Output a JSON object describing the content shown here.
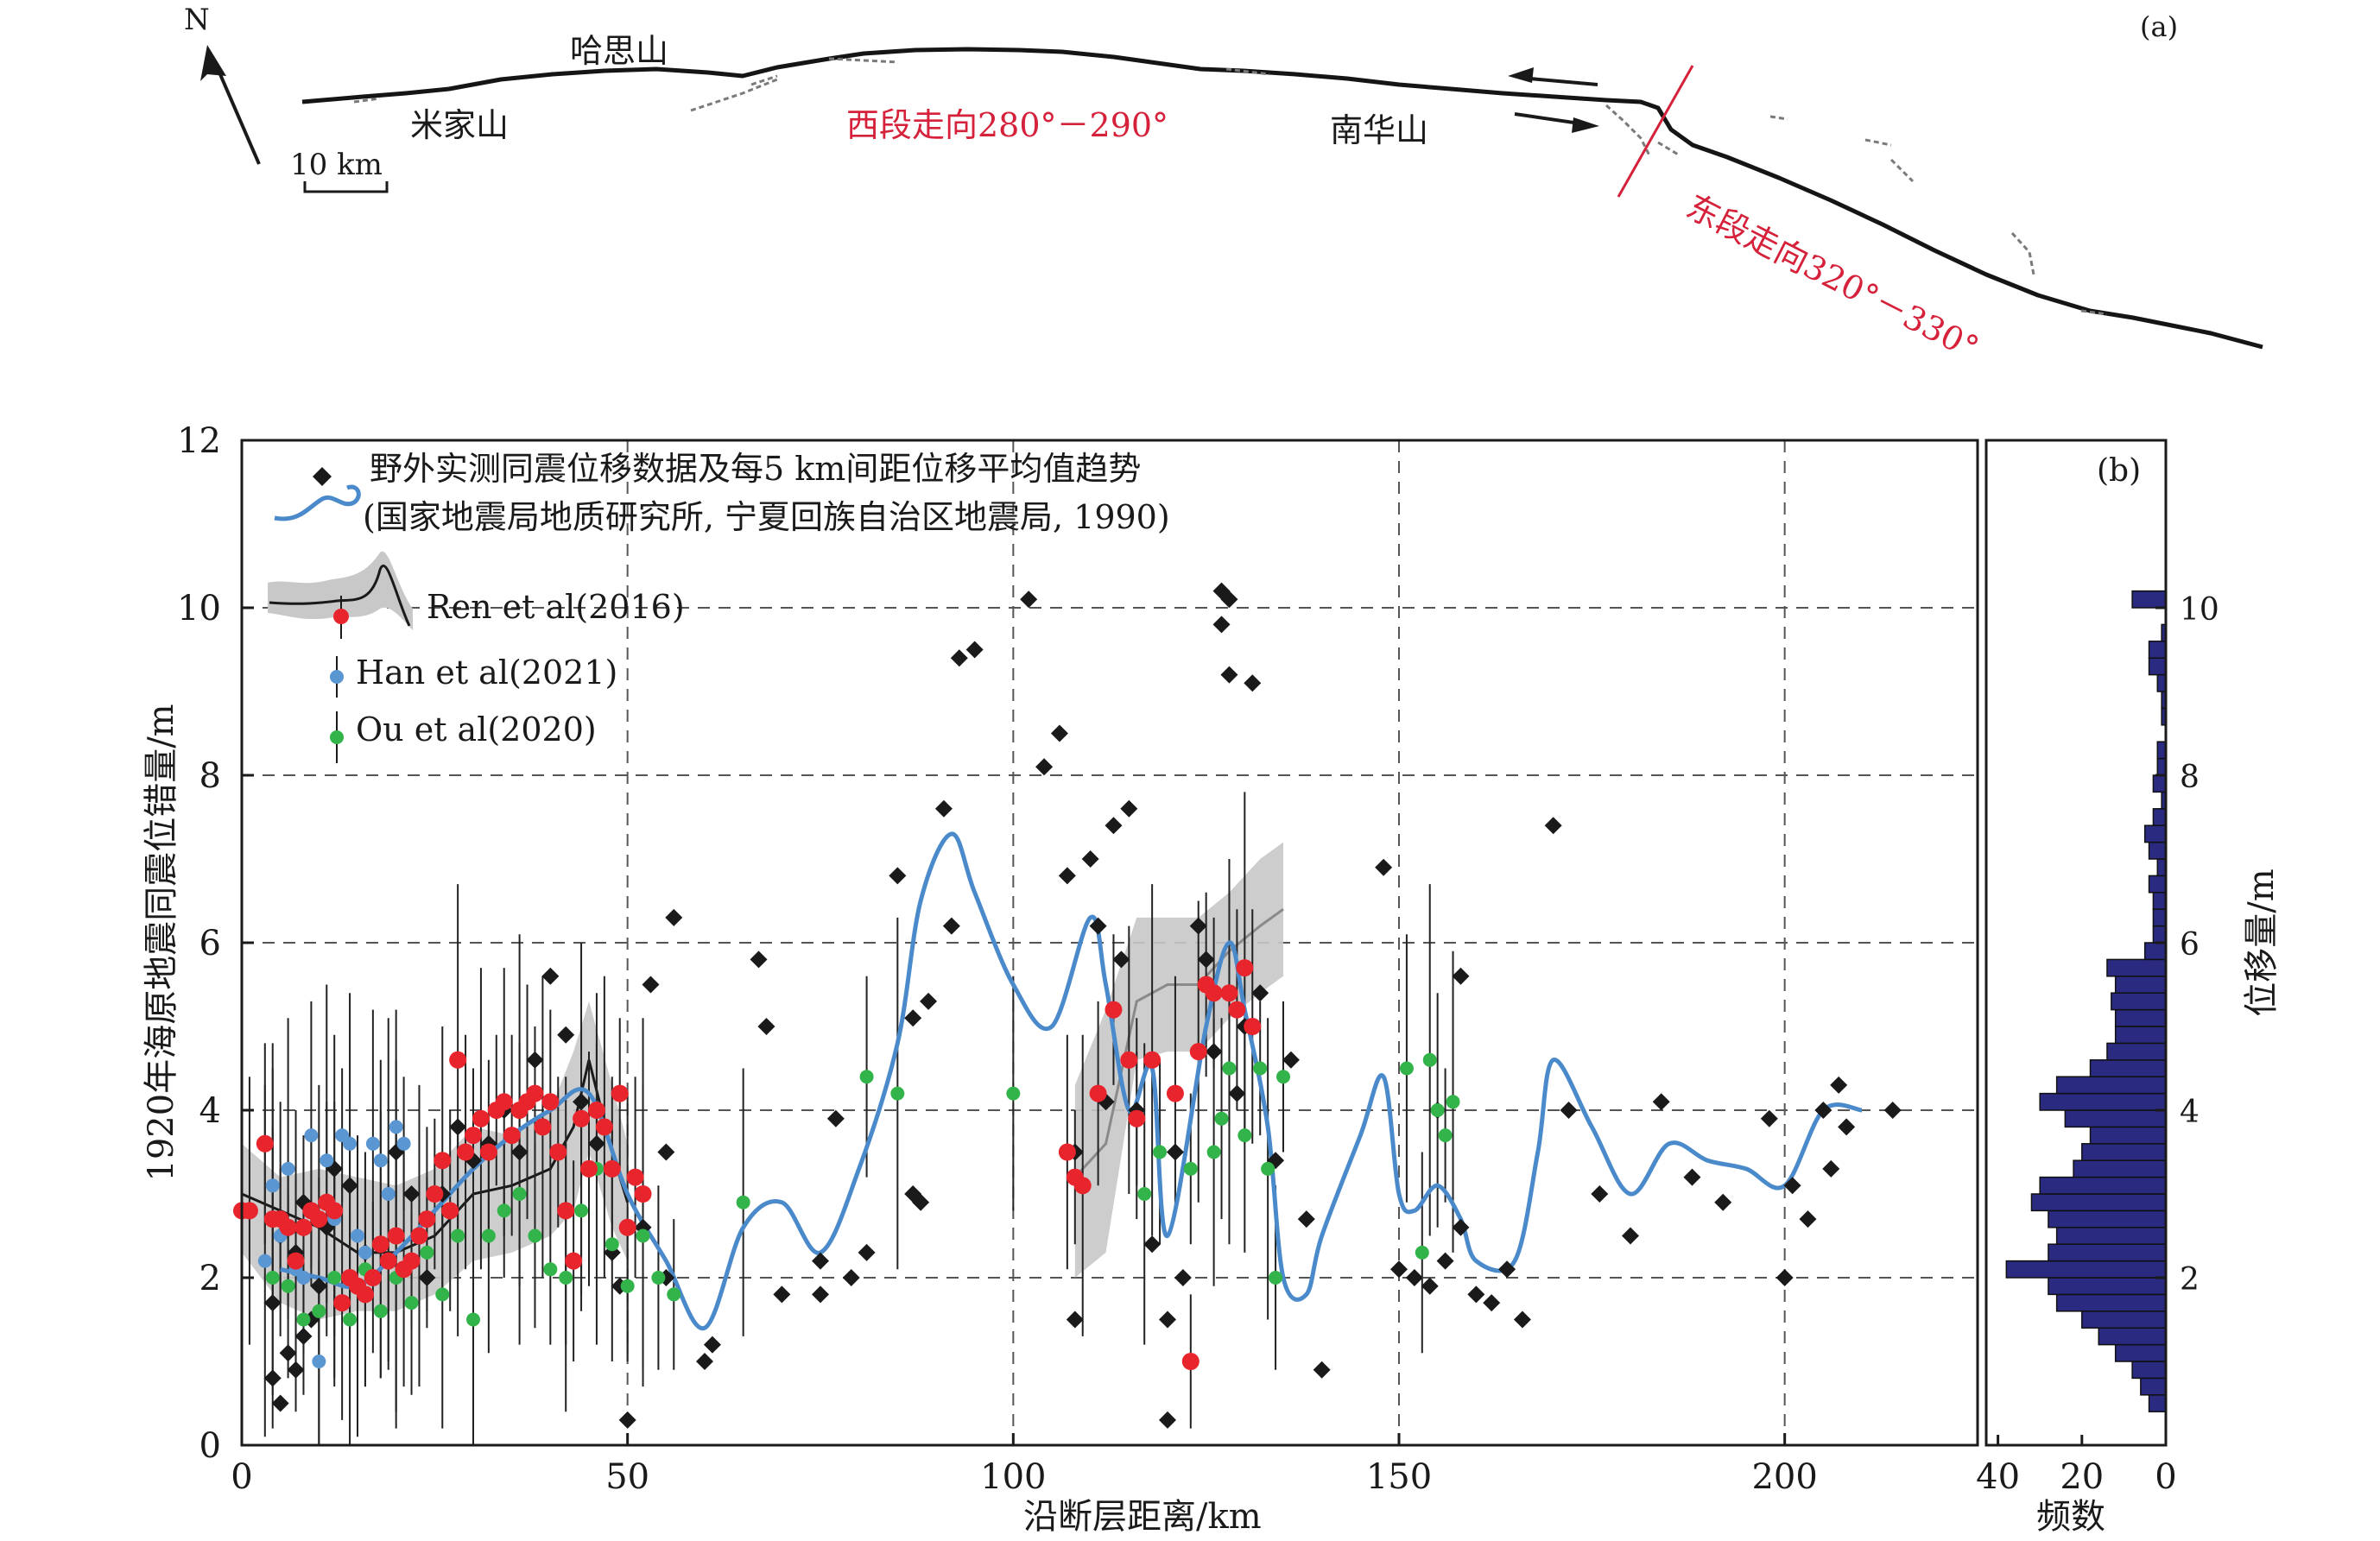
{
  "panel_a": {
    "label": "(a)",
    "north": "N",
    "scale_bar": "10 km",
    "places": [
      "米家山",
      "哈思山",
      "南华山"
    ],
    "west_segment": "西段走向280°－290°",
    "east_segment": "东段走向320°－330°"
  },
  "panel_b_label": "(b)",
  "legend": {
    "field_line1": "野外实测同震位移数据及每5 km间距位移平均值趋势",
    "field_line2": "(国家地震局地质研究所, 宁夏回族自治区地震局, 1990)",
    "ren": "Ren et al(2016)",
    "han": "Han et al(2021)",
    "ou": "Ou et al(2020)"
  },
  "colors": {
    "field": "#1a1a1a",
    "ren": "#e8242c",
    "han": "#5a96d2",
    "ou": "#33b44a",
    "trend": "#4a8acb",
    "band": "#c8c8c8",
    "hist": "#2a2a80",
    "red_text": "#d6213b"
  },
  "chart_data": [
    {
      "type": "scatter",
      "xlabel": "沿断层距离/km",
      "ylabel": "1920年海原地震同震位错量/m",
      "xlim": [
        0,
        225
      ],
      "ylim": [
        0,
        12
      ],
      "x_ticks": [
        0,
        50,
        100,
        150,
        200
      ],
      "y_ticks": [
        0,
        2,
        4,
        6,
        8,
        10,
        12
      ],
      "grid": "dashed",
      "legend_position": "top-left",
      "series": [
        {
          "name": "野外实测同震位移数据及每5 km间距位移平均值趋势",
          "marker": "diamond",
          "x": [
            4,
            4,
            5,
            5,
            6,
            7,
            7,
            8,
            8,
            9,
            10,
            11,
            12,
            14,
            16,
            18,
            20,
            22,
            24,
            26,
            28,
            30,
            32,
            34,
            36,
            38,
            40,
            42,
            44,
            46,
            48,
            49,
            50,
            52,
            53,
            55,
            55,
            56,
            60,
            61,
            67,
            68,
            70,
            75,
            75,
            77,
            79,
            81,
            85,
            87,
            87,
            88,
            89,
            91,
            92,
            93,
            95,
            102,
            104,
            106,
            107,
            108,
            108,
            110,
            111,
            112,
            113,
            114,
            115,
            116,
            118,
            120,
            120,
            121,
            122,
            124,
            125,
            126,
            127,
            127,
            128,
            128,
            129,
            130,
            131,
            132,
            134,
            136,
            138,
            140,
            148,
            150,
            152,
            154,
            155,
            156,
            158,
            158,
            160,
            162,
            164,
            166,
            170,
            172,
            176,
            180,
            184,
            188,
            192,
            198,
            200,
            201,
            203,
            205,
            206,
            207,
            208,
            214
          ],
          "y": [
            0.8,
            1.7,
            2.5,
            0.5,
            1.1,
            0.9,
            2.3,
            1.3,
            2.9,
            1.5,
            1.9,
            2.6,
            3.3,
            3.1,
            2.3,
            2.4,
            3.5,
            3.0,
            2.0,
            3.0,
            3.8,
            3.4,
            3.6,
            4.0,
            3.5,
            4.6,
            5.6,
            4.9,
            4.1,
            3.6,
            2.3,
            1.9,
            0.3,
            2.6,
            5.5,
            3.5,
            2.0,
            6.3,
            1.0,
            1.2,
            5.8,
            5.0,
            1.8,
            1.8,
            2.2,
            3.9,
            2.0,
            2.3,
            6.8,
            5.1,
            3.0,
            2.9,
            5.3,
            7.6,
            6.2,
            9.4,
            9.5,
            10.1,
            8.1,
            8.5,
            6.8,
            3.5,
            1.5,
            7.0,
            6.2,
            4.1,
            7.4,
            5.8,
            7.6,
            4.0,
            2.4,
            1.5,
            0.3,
            3.5,
            2.0,
            6.2,
            5.8,
            4.7,
            10.2,
            9.8,
            10.1,
            9.2,
            4.2,
            5.0,
            9.1,
            5.4,
            3.4,
            4.6,
            2.7,
            0.9,
            6.9,
            2.1,
            2.0,
            1.9,
            4.0,
            2.2,
            2.6,
            5.6,
            1.8,
            1.7,
            2.1,
            1.5,
            7.4,
            4.0,
            3.0,
            2.5,
            4.1,
            3.2,
            2.9,
            3.9,
            2.0,
            3.1,
            2.7,
            4.0,
            3.3,
            4.3,
            3.8,
            4.0
          ]
        },
        {
          "name": "Ren et al(2016)",
          "marker": "circle",
          "x": [
            0,
            1,
            3,
            4,
            5,
            6,
            7,
            8,
            9,
            10,
            11,
            12,
            13,
            14,
            15,
            16,
            17,
            18,
            19,
            20,
            21,
            22,
            23,
            24,
            25,
            26,
            27,
            28,
            29,
            30,
            31,
            32,
            33,
            34,
            35,
            36,
            37,
            38,
            39,
            40,
            41,
            42,
            43,
            44,
            45,
            46,
            47,
            48,
            49,
            50,
            51,
            52,
            107,
            108,
            109,
            111,
            113,
            115,
            116,
            118,
            121,
            123,
            124,
            125,
            126,
            128,
            129,
            130,
            131
          ],
          "y": [
            2.8,
            2.8,
            3.6,
            2.7,
            2.7,
            2.6,
            2.2,
            2.6,
            2.8,
            2.7,
            2.9,
            2.8,
            1.7,
            2.0,
            1.9,
            1.8,
            2.0,
            2.4,
            2.2,
            2.5,
            2.1,
            2.2,
            2.5,
            2.7,
            3.0,
            3.4,
            2.8,
            4.6,
            3.5,
            3.7,
            3.9,
            3.5,
            4.0,
            4.1,
            3.7,
            4.0,
            4.1,
            4.2,
            3.8,
            4.1,
            3.5,
            2.8,
            2.2,
            3.9,
            3.3,
            4.0,
            3.8,
            3.3,
            4.2,
            2.6,
            3.2,
            3.0,
            3.5,
            3.2,
            3.1,
            4.2,
            5.2,
            4.6,
            3.9,
            4.6,
            4.2,
            1.0,
            4.7,
            5.5,
            5.4,
            5.4,
            5.2,
            5.7,
            5.0
          ]
        },
        {
          "name": "Han et al(2021)",
          "marker": "circle",
          "x": [
            3,
            4,
            5,
            6,
            7,
            8,
            9,
            10,
            11,
            12,
            13,
            14,
            15,
            16,
            17,
            18,
            19,
            20,
            21
          ],
          "y": [
            2.2,
            3.1,
            2.5,
            3.3,
            2.1,
            2.0,
            3.7,
            1.0,
            3.4,
            2.7,
            3.7,
            3.6,
            2.5,
            2.3,
            3.6,
            3.4,
            3.0,
            3.8,
            3.6
          ]
        },
        {
          "name": "Ou et al(2020)",
          "marker": "circle",
          "x": [
            4,
            6,
            8,
            10,
            12,
            14,
            16,
            18,
            20,
            22,
            24,
            26,
            28,
            30,
            32,
            34,
            36,
            38,
            40,
            42,
            44,
            46,
            48,
            50,
            52,
            54,
            56,
            65,
            81,
            85,
            100,
            116,
            117,
            119,
            123,
            126,
            127,
            128,
            130,
            132,
            133,
            134,
            135,
            151,
            153,
            154,
            155,
            156,
            157
          ],
          "y": [
            2.0,
            1.9,
            1.5,
            1.6,
            2.0,
            1.5,
            2.1,
            1.6,
            2.0,
            1.7,
            2.3,
            1.8,
            2.5,
            1.5,
            2.5,
            2.8,
            3.0,
            2.5,
            2.1,
            2.0,
            2.8,
            3.3,
            2.4,
            1.9,
            2.5,
            2.0,
            1.8,
            2.9,
            4.4,
            4.2,
            4.2,
            3.9,
            3.0,
            3.5,
            3.3,
            3.5,
            3.9,
            4.5,
            3.7,
            4.5,
            3.3,
            2.0,
            4.4,
            4.5,
            2.3,
            4.6,
            4.0,
            3.7,
            4.1
          ]
        }
      ],
      "trend_line": {
        "name": "每5 km间距位移平均值趋势",
        "x": [
          5,
          10,
          15,
          20,
          25,
          30,
          35,
          40,
          45,
          50,
          55,
          60,
          65,
          70,
          75,
          80,
          85,
          88,
          92,
          95,
          100,
          105,
          110,
          112,
          115,
          118,
          120,
          125,
          128,
          130,
          133,
          135,
          138,
          140,
          145,
          148,
          150,
          152,
          155,
          158,
          160,
          165,
          168,
          170,
          175,
          180,
          185,
          190,
          195,
          200,
          205,
          210
        ],
        "y": [
          2.1,
          2.0,
          1.9,
          2.3,
          2.8,
          3.3,
          3.7,
          4.0,
          4.2,
          3.0,
          2.2,
          1.4,
          2.6,
          2.9,
          2.3,
          3.3,
          4.8,
          6.5,
          7.3,
          6.6,
          5.5,
          5.0,
          6.3,
          5.5,
          4.0,
          4.5,
          2.5,
          5.0,
          6.0,
          5.2,
          3.8,
          2.0,
          1.8,
          2.5,
          3.7,
          4.4,
          3.0,
          2.8,
          3.1,
          2.7,
          2.2,
          2.2,
          3.5,
          4.6,
          3.8,
          3.0,
          3.6,
          3.4,
          3.3,
          3.1,
          4.0,
          4.0
        ]
      },
      "ren_band": {
        "segment1": {
          "x": [
            0,
            5,
            10,
            15,
            20,
            25,
            30,
            35,
            40,
            43,
            45,
            48,
            50
          ],
          "mean": [
            3.0,
            2.8,
            2.6,
            2.3,
            2.3,
            2.5,
            3.0,
            3.1,
            3.3,
            3.8,
            4.6,
            3.5,
            2.9
          ],
          "lower": [
            2.3,
            1.7,
            1.5,
            1.6,
            1.6,
            1.8,
            2.2,
            2.3,
            2.5,
            2.8,
            3.5,
            2.6,
            2.2
          ],
          "upper": [
            3.6,
            3.2,
            3.3,
            3.2,
            3.1,
            3.3,
            3.8,
            3.7,
            4.0,
            4.7,
            5.3,
            4.3,
            3.6
          ]
        },
        "segment2": {
          "x": [
            108,
            112,
            116,
            120,
            124,
            128,
            132,
            135
          ],
          "mean": [
            3.2,
            3.6,
            5.3,
            5.5,
            5.5,
            5.9,
            6.2,
            6.4
          ],
          "lower": [
            2.0,
            2.3,
            4.6,
            4.7,
            4.7,
            5.1,
            5.4,
            5.6
          ],
          "upper": [
            4.3,
            5.2,
            6.3,
            6.3,
            6.3,
            6.6,
            7.0,
            7.2
          ]
        }
      }
    },
    {
      "type": "bar",
      "orientation": "horizontal",
      "xlabel": "频数",
      "ylabel": "位移量/m",
      "x_ticks": [
        40,
        20,
        0
      ],
      "y_ticks": [
        2,
        4,
        6,
        8,
        10
      ],
      "bin_width": 0.2,
      "bin_starts": [
        0.4,
        0.6,
        0.8,
        1.0,
        1.2,
        1.4,
        1.6,
        1.8,
        2.0,
        2.2,
        2.4,
        2.6,
        2.8,
        3.0,
        3.2,
        3.4,
        3.6,
        3.8,
        4.0,
        4.2,
        4.4,
        4.6,
        4.8,
        5.0,
        5.2,
        5.4,
        5.6,
        5.8,
        6.0,
        6.2,
        6.4,
        6.6,
        6.8,
        7.0,
        7.2,
        7.4,
        7.6,
        7.8,
        8.0,
        8.2,
        8.4,
        8.6,
        8.8,
        9.0,
        9.2,
        9.4,
        9.6,
        9.8,
        10.0
      ],
      "values": [
        4,
        6,
        8,
        12,
        16,
        20,
        26,
        28,
        38,
        28,
        26,
        28,
        32,
        30,
        22,
        20,
        18,
        24,
        30,
        26,
        18,
        14,
        12,
        12,
        13,
        12,
        14,
        5,
        3,
        3,
        3,
        4,
        2,
        4,
        5,
        3,
        1,
        3,
        2,
        2,
        0,
        1,
        1,
        2,
        4,
        4,
        1,
        0,
        8
      ]
    }
  ]
}
